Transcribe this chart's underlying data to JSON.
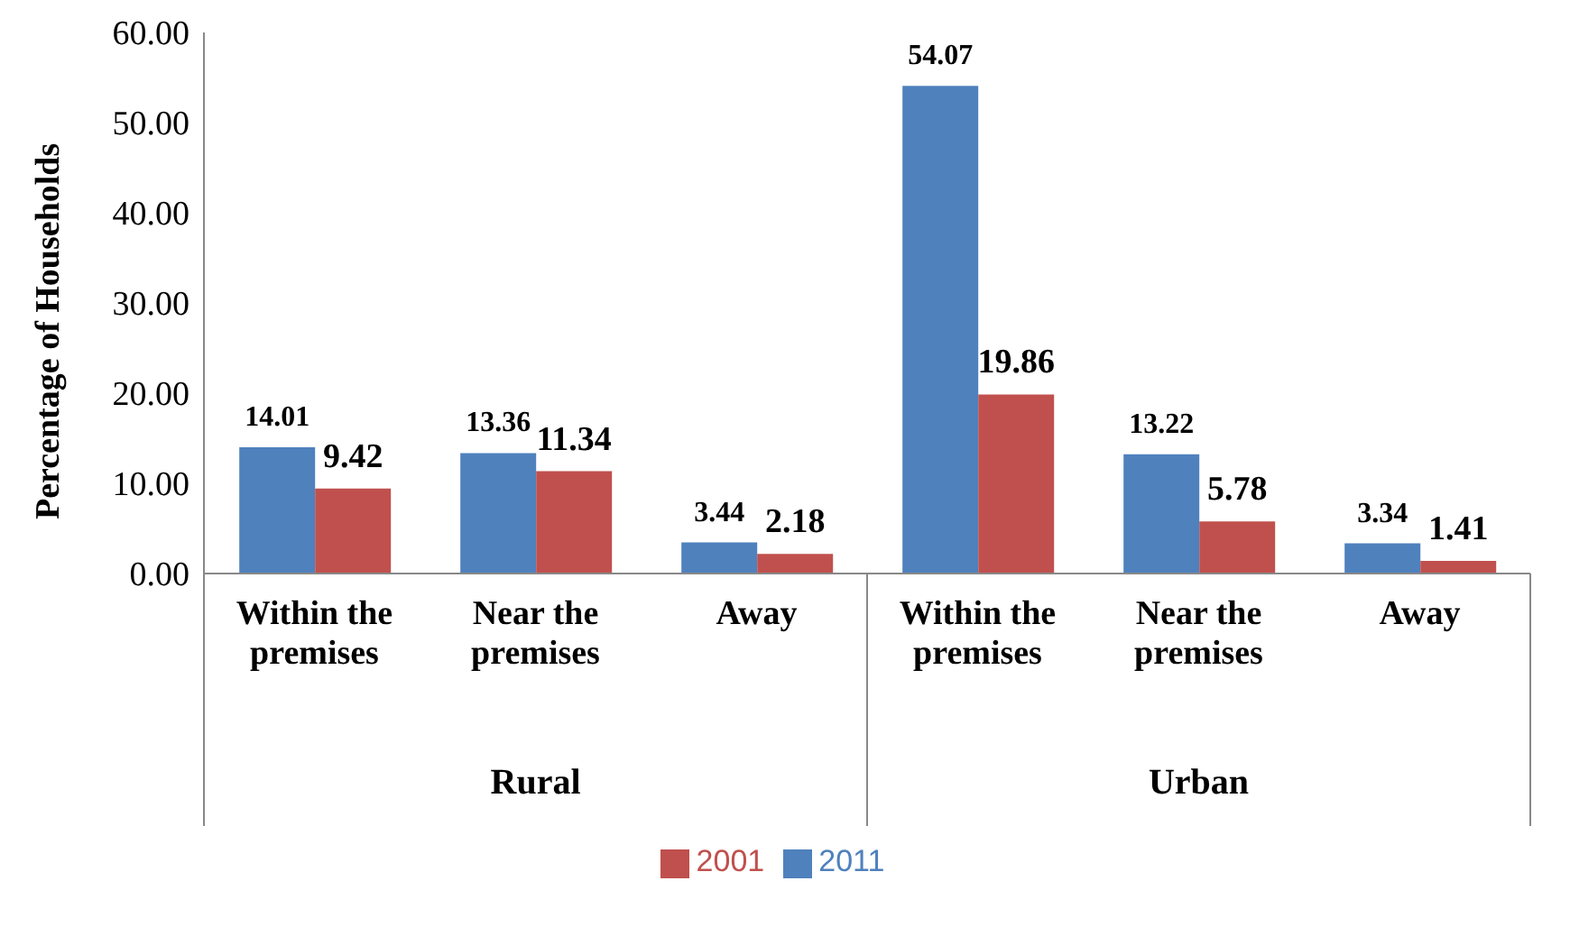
{
  "chart_data": {
    "type": "bar",
    "ylabel": "Percentage of Households",
    "categories": [
      "Within the premises",
      "Near the premises",
      "Away",
      "Within the premises",
      "Near the premises",
      "Away"
    ],
    "series": [
      {
        "name": "2011",
        "color": "#4f81bd",
        "values": [
          14.01,
          13.36,
          3.44,
          54.07,
          13.22,
          3.34
        ]
      },
      {
        "name": "2001",
        "color": "#c0504d",
        "values": [
          9.42,
          11.34,
          2.18,
          19.86,
          5.78,
          1.41
        ]
      }
    ],
    "ylim": [
      0,
      60
    ],
    "yticks": [
      {
        "value": 0,
        "label": "0.00"
      },
      {
        "value": 10,
        "label": "10.00"
      },
      {
        "value": 20,
        "label": "20.00"
      },
      {
        "value": 30,
        "label": "30.00"
      },
      {
        "value": 40,
        "label": "40.00"
      },
      {
        "value": 50,
        "label": "50.00"
      },
      {
        "value": 60,
        "label": "60.00"
      }
    ],
    "annotations": [
      "Rural",
      "Urban"
    ],
    "data_labels": true,
    "grid": false,
    "legend": "bottom"
  }
}
